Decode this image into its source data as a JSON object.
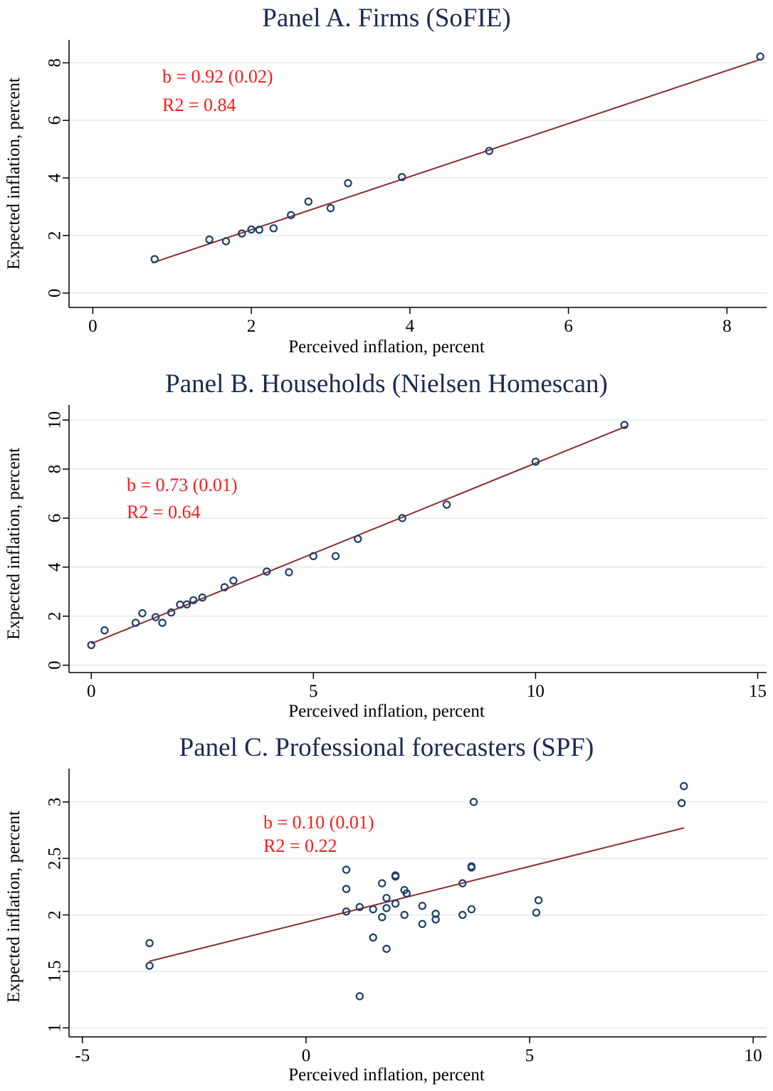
{
  "chart_data": [
    {
      "type": "scatter",
      "title": "Panel A. Firms (SoFIE)",
      "xlabel": "Perceived inflation, percent",
      "ylabel": "Expected inflation, percent",
      "xlim": [
        -0.3,
        8.5
      ],
      "ylim": [
        -0.5,
        8.7
      ],
      "xticks": [
        0,
        2,
        4,
        6,
        8
      ],
      "yticks": [
        0,
        2,
        4,
        6,
        8
      ],
      "grid": true,
      "annotations": [
        "b = 0.92 (0.02)",
        "R2 = 0.84"
      ],
      "fit_line": {
        "x": [
          0.75,
          8.4
        ],
        "y": [
          1.05,
          8.1
        ]
      },
      "points": [
        {
          "x": 0.78,
          "y": 1.18
        },
        {
          "x": 1.47,
          "y": 1.86
        },
        {
          "x": 1.68,
          "y": 1.8
        },
        {
          "x": 1.88,
          "y": 2.07
        },
        {
          "x": 2.0,
          "y": 2.21
        },
        {
          "x": 2.1,
          "y": 2.2
        },
        {
          "x": 2.28,
          "y": 2.25
        },
        {
          "x": 2.5,
          "y": 2.71
        },
        {
          "x": 2.72,
          "y": 3.18
        },
        {
          "x": 3.0,
          "y": 2.95
        },
        {
          "x": 3.22,
          "y": 3.82
        },
        {
          "x": 3.9,
          "y": 4.03
        },
        {
          "x": 5.0,
          "y": 4.94
        },
        {
          "x": 8.42,
          "y": 8.22
        }
      ]
    },
    {
      "type": "scatter",
      "title": "Panel B. Households (Nielsen Homescan)",
      "xlabel": "Perceived inflation, percent",
      "ylabel": "Expected inflation, percent",
      "xlim": [
        -0.5,
        15.2
      ],
      "ylim": [
        -0.3,
        10.5
      ],
      "xticks": [
        0,
        5,
        10,
        15
      ],
      "yticks": [
        0,
        2,
        4,
        6,
        8,
        10
      ],
      "grid": true,
      "annotations": [
        "b = 0.73 (0.01)",
        "R2 = 0.64"
      ],
      "fit_line": {
        "x": [
          0.0,
          12.05
        ],
        "y": [
          0.88,
          9.75
        ]
      },
      "points": [
        {
          "x": 0.0,
          "y": 0.82
        },
        {
          "x": 0.3,
          "y": 1.42
        },
        {
          "x": 1.0,
          "y": 1.73
        },
        {
          "x": 1.15,
          "y": 2.12
        },
        {
          "x": 1.45,
          "y": 1.96
        },
        {
          "x": 1.6,
          "y": 1.73
        },
        {
          "x": 1.8,
          "y": 2.15
        },
        {
          "x": 2.0,
          "y": 2.47
        },
        {
          "x": 2.15,
          "y": 2.48
        },
        {
          "x": 2.3,
          "y": 2.65
        },
        {
          "x": 2.5,
          "y": 2.76
        },
        {
          "x": 3.0,
          "y": 3.18
        },
        {
          "x": 3.2,
          "y": 3.45
        },
        {
          "x": 3.95,
          "y": 3.82
        },
        {
          "x": 4.45,
          "y": 3.79
        },
        {
          "x": 5.0,
          "y": 4.45
        },
        {
          "x": 5.5,
          "y": 4.45
        },
        {
          "x": 6.0,
          "y": 5.15
        },
        {
          "x": 7.0,
          "y": 6.0
        },
        {
          "x": 8.0,
          "y": 6.55
        },
        {
          "x": 10.0,
          "y": 8.3
        },
        {
          "x": 12.0,
          "y": 9.8
        }
      ]
    },
    {
      "type": "scatter",
      "title": "Panel C. Professional forecasters (SPF)",
      "xlabel": "Perceived inflation, percent",
      "ylabel": "Expected inflation, percent",
      "xlim": [
        -5.3,
        10.3
      ],
      "ylim": [
        0.92,
        3.27
      ],
      "xticks": [
        -5,
        0,
        5,
        10
      ],
      "yticks": [
        1,
        1.5,
        2,
        2.5,
        3
      ],
      "grid": true,
      "annotations": [
        "b = 0.10 (0.01)",
        "R2 = 0.22"
      ],
      "fit_line": {
        "x": [
          -3.5,
          8.45
        ],
        "y": [
          1.59,
          2.77
        ]
      },
      "points": [
        {
          "x": -3.5,
          "y": 1.55
        },
        {
          "x": -3.5,
          "y": 1.75
        },
        {
          "x": 0.9,
          "y": 2.4
        },
        {
          "x": 0.9,
          "y": 2.23
        },
        {
          "x": 0.9,
          "y": 2.03
        },
        {
          "x": 1.2,
          "y": 1.28
        },
        {
          "x": 1.2,
          "y": 2.07
        },
        {
          "x": 1.5,
          "y": 1.8
        },
        {
          "x": 1.5,
          "y": 2.05
        },
        {
          "x": 1.7,
          "y": 1.98
        },
        {
          "x": 1.7,
          "y": 2.28
        },
        {
          "x": 1.8,
          "y": 2.15
        },
        {
          "x": 1.8,
          "y": 2.06
        },
        {
          "x": 1.8,
          "y": 1.7
        },
        {
          "x": 2.0,
          "y": 2.35
        },
        {
          "x": 2.0,
          "y": 2.34
        },
        {
          "x": 2.0,
          "y": 2.1
        },
        {
          "x": 2.2,
          "y": 2.22
        },
        {
          "x": 2.25,
          "y": 2.19
        },
        {
          "x": 2.2,
          "y": 2.0
        },
        {
          "x": 2.6,
          "y": 2.08
        },
        {
          "x": 2.6,
          "y": 1.92
        },
        {
          "x": 2.9,
          "y": 2.01
        },
        {
          "x": 2.9,
          "y": 1.96
        },
        {
          "x": 3.5,
          "y": 2.28
        },
        {
          "x": 3.5,
          "y": 2.0
        },
        {
          "x": 3.7,
          "y": 2.43
        },
        {
          "x": 3.7,
          "y": 2.42
        },
        {
          "x": 3.75,
          "y": 3.0
        },
        {
          "x": 3.7,
          "y": 2.05
        },
        {
          "x": 5.2,
          "y": 2.13
        },
        {
          "x": 5.15,
          "y": 2.02
        },
        {
          "x": 8.4,
          "y": 2.99
        },
        {
          "x": 8.45,
          "y": 3.14
        }
      ]
    }
  ]
}
